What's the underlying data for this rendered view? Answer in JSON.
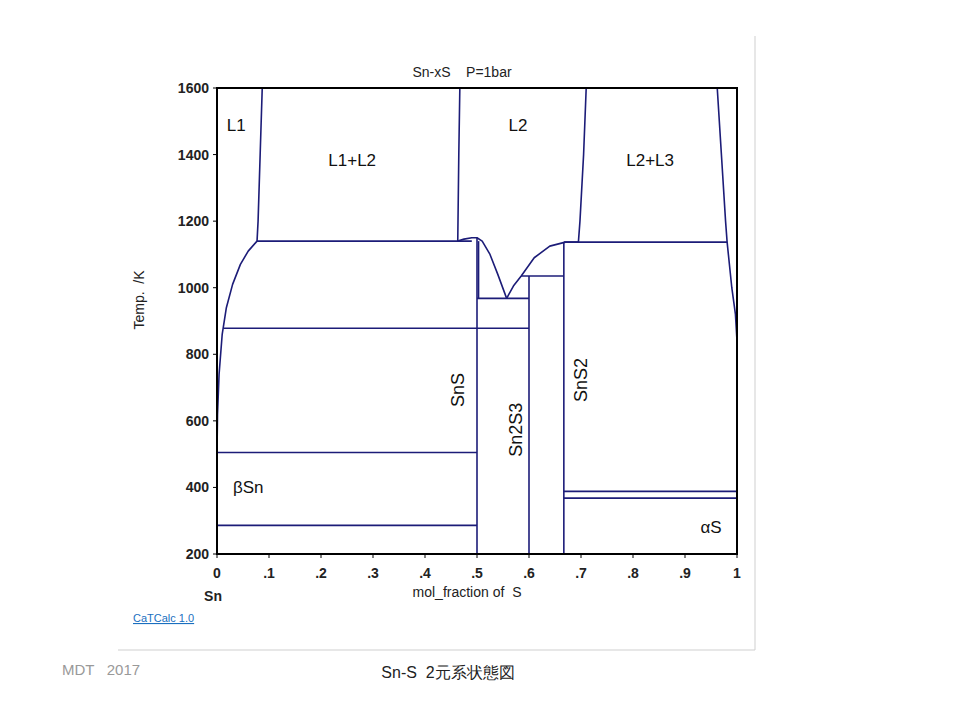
{
  "chart_data": {
    "type": "line",
    "title": "Sn-xS    P=1bar",
    "x_label": "mol_fraction of  S",
    "y_label": "Temp.  /K",
    "x_origin_label": "Sn",
    "source": "CaTCalc 1.0",
    "credit": "MDT   2017",
    "caption": "Sn-S  2元系状態図",
    "color": "#1c1c78",
    "grid": false,
    "xlim": [
      0,
      1
    ],
    "ylim": [
      200,
      1600
    ],
    "xticks": [
      0,
      {
        "value": 0.1,
        "label": ".1"
      },
      {
        "value": 0.2,
        "label": ".2"
      },
      {
        "value": 0.3,
        "label": ".3"
      },
      {
        "value": 0.4,
        "label": ".4"
      },
      {
        "value": 0.5,
        "label": ".5"
      },
      {
        "value": 0.6,
        "label": ".6"
      },
      {
        "value": 0.7,
        "label": ".7"
      },
      {
        "value": 0.8,
        "label": ".8"
      },
      {
        "value": 0.9,
        "label": ".9"
      },
      1
    ],
    "yticks": [
      200,
      400,
      600,
      800,
      1000,
      1200,
      1400,
      1600
    ],
    "series": [
      {
        "x": [
          0.087,
          0.083,
          0.079,
          0.077
        ],
        "values": [
          1600,
          1400,
          1200,
          1140
        ]
      },
      {
        "x": [
          0.467,
          0.465,
          0.463
        ],
        "values": [
          1600,
          1400,
          1140
        ]
      },
      {
        "x": [
          0.077,
          0.49
        ],
        "values": [
          1140,
          1140
        ]
      },
      {
        "x": [
          0.077,
          0.06,
          0.045,
          0.03,
          0.018,
          0.01,
          0.004,
          0.001,
          0
        ],
        "values": [
          1140,
          1110,
          1070,
          1010,
          940,
          860,
          740,
          620,
          505
        ]
      },
      {
        "x": [
          0.012,
          0.6
        ],
        "values": [
          878,
          878
        ]
      },
      {
        "x": [
          0,
          0.5
        ],
        "values": [
          505,
          505
        ]
      },
      {
        "x": [
          0,
          0.5
        ],
        "values": [
          286,
          286
        ]
      },
      {
        "x": [
          0.5,
          0.5
        ],
        "values": [
          200,
          1150
        ]
      },
      {
        "x": [
          0.463,
          0.475,
          0.49,
          0.5,
          0.51,
          0.525,
          0.54,
          0.557
        ],
        "values": [
          1140,
          1146,
          1150,
          1150,
          1140,
          1100,
          1040,
          968
        ]
      },
      {
        "x": [
          0.503,
          0.503
        ],
        "values": [
          1140,
          968
        ]
      },
      {
        "x": [
          0.5,
          0.6
        ],
        "values": [
          968,
          968
        ]
      },
      {
        "x": [
          0.557,
          0.57,
          0.585,
          0.61,
          0.64,
          0.67,
          0.695
        ],
        "values": [
          968,
          1005,
          1035,
          1090,
          1125,
          1137,
          1137
        ]
      },
      {
        "x": [
          0.6,
          0.6
        ],
        "values": [
          200,
          1035
        ]
      },
      {
        "x": [
          0.585,
          0.667
        ],
        "values": [
          1035,
          1035
        ]
      },
      {
        "x": [
          0.667,
          0.667
        ],
        "values": [
          200,
          1137
        ]
      },
      {
        "x": [
          0.667,
          0.981
        ],
        "values": [
          1137,
          1137
        ]
      },
      {
        "x": [
          0.71,
          0.705,
          0.698,
          0.695
        ],
        "values": [
          1600,
          1400,
          1200,
          1137
        ]
      },
      {
        "x": [
          0.962,
          0.97,
          0.978,
          0.981,
          0.99,
          0.997,
          1
        ],
        "values": [
          1600,
          1400,
          1200,
          1137,
          1000,
          920,
          840
        ]
      },
      {
        "x": [
          0.667,
          1
        ],
        "values": [
          388,
          388
        ]
      },
      {
        "x": [
          0.667,
          1
        ],
        "values": [
          368,
          368
        ]
      }
    ],
    "region_labels": [
      {
        "text": "L1",
        "x": 0.037,
        "y": 1490
      },
      {
        "text": "L1+L2",
        "x": 0.26,
        "y": 1384
      },
      {
        "text": "L2",
        "x": 0.579,
        "y": 1490
      },
      {
        "text": "L2+L3",
        "x": 0.833,
        "y": 1384
      },
      {
        "text": "βSn",
        "x": 0.06,
        "y": 402
      },
      {
        "text": "αS",
        "x": 0.95,
        "y": 282
      }
    ],
    "compound_labels": [
      {
        "text": "SnS",
        "x": 0.463,
        "y": 693
      },
      {
        "text": "Sn2S3",
        "x": 0.575,
        "y": 573
      },
      {
        "text": "SnS2",
        "x": 0.7,
        "y": 723
      }
    ]
  }
}
